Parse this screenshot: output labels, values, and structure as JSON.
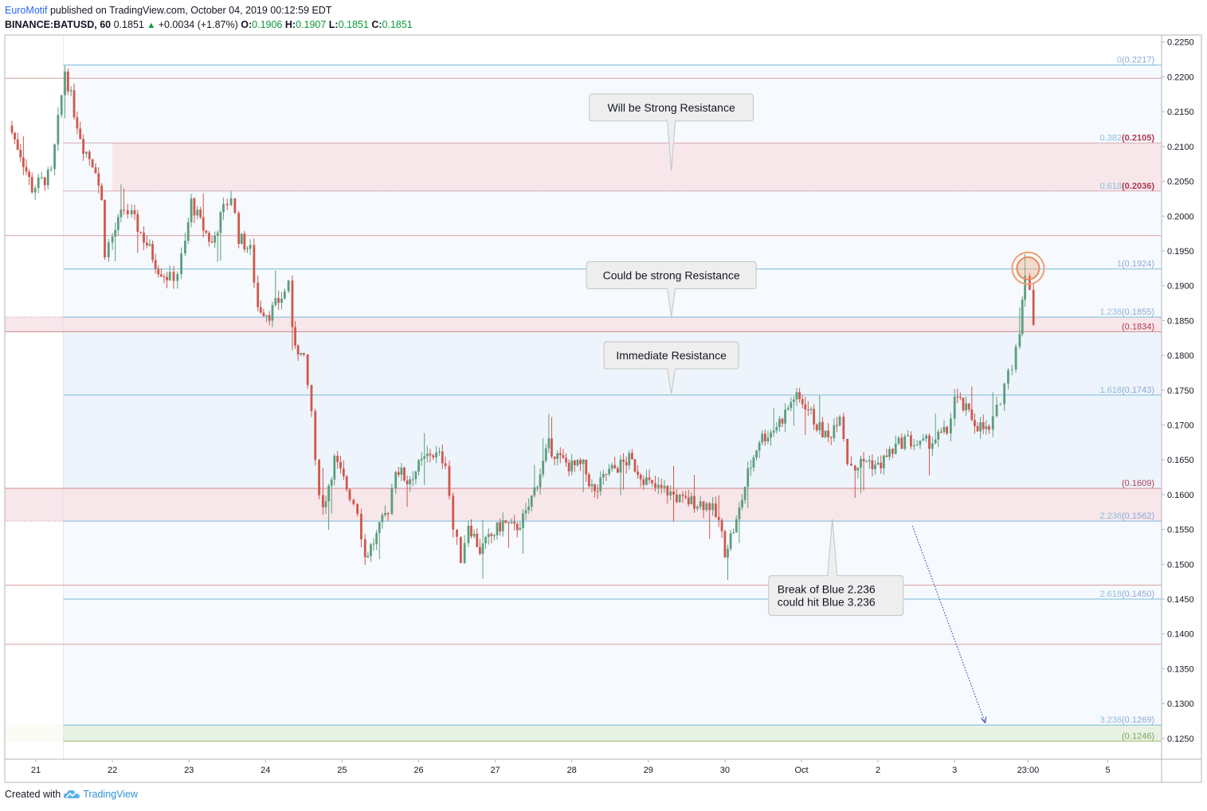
{
  "header": {
    "author": "EuroMotif",
    "published_text": " published on TradingView.com, October 04, 2019 00:12:59 EDT",
    "symbol": "BINANCE:BATUSD, 60",
    "last": "0.1851",
    "change": "+0.0034 (+1.87%)",
    "o_label": "O:",
    "o": "0.1906",
    "h_label": "H:",
    "h": "0.1907",
    "l_label": "L:",
    "l": "0.1851",
    "c_label": "C:",
    "c": "0.1851"
  },
  "footer": {
    "created_with": "Created with",
    "brand": "TradingView"
  },
  "colors": {
    "up": "#5c9e7e",
    "down": "#d0574d",
    "fib_blue": "#7bbad9",
    "fib_red": "#d08a8a",
    "pink_zone": "#f7e6ea",
    "blue_zone": "#eef4fb",
    "green_zone": "#e8f2e4"
  },
  "chart_data": {
    "type": "candlestick",
    "y_axis": {
      "min": 0.122,
      "max": 0.226,
      "ticks": [
        "0.2250",
        "0.2200",
        "0.2150",
        "0.2100",
        "0.2050",
        "0.2000",
        "0.1950",
        "0.1900",
        "0.1850",
        "0.1800",
        "0.1750",
        "0.1700",
        "0.1650",
        "0.1600",
        "0.1550",
        "0.1500",
        "0.1450",
        "0.1400",
        "0.1350",
        "0.1300",
        "0.1250"
      ]
    },
    "x_axis": {
      "ticks": [
        {
          "label": "21",
          "day": 0
        },
        {
          "label": "22",
          "day": 1
        },
        {
          "label": "23",
          "day": 2
        },
        {
          "label": "24",
          "day": 3
        },
        {
          "label": "25",
          "day": 4
        },
        {
          "label": "26",
          "day": 5
        },
        {
          "label": "27",
          "day": 6
        },
        {
          "label": "28",
          "day": 7
        },
        {
          "label": "29",
          "day": 8
        },
        {
          "label": "30",
          "day": 9
        },
        {
          "label": "Oct",
          "day": 10
        },
        {
          "label": "2",
          "day": 11
        },
        {
          "label": "3",
          "day": 12
        },
        {
          "label": "23:00",
          "day": 12.96
        },
        {
          "label": "5",
          "day": 14
        }
      ]
    },
    "fib_levels": [
      {
        "ratio": "0",
        "price": "(0.2217)",
        "value": 0.2217,
        "color": "blue"
      },
      {
        "ratio": "0.382",
        "price": "(0.2105)",
        "value": 0.2105,
        "color": "red"
      },
      {
        "ratio": "0.618",
        "price": "(0.2036)",
        "value": 0.2036,
        "color": "red"
      },
      {
        "ratio": "1",
        "price": "(0.1924)",
        "value": 0.1924,
        "color": "blue"
      },
      {
        "ratio": "1.236",
        "price": "(0.1855)",
        "value": 0.1855,
        "color": "blue"
      },
      {
        "ratio": "",
        "price": "(0.1834)",
        "value": 0.1834,
        "color": "red"
      },
      {
        "ratio": "1.618",
        "price": "(0.1743)",
        "value": 0.1743,
        "color": "blue"
      },
      {
        "ratio": "",
        "price": "(0.1609)",
        "value": 0.1609,
        "color": "red"
      },
      {
        "ratio": "2.236",
        "price": "(0.1562)",
        "value": 0.1562,
        "color": "blue"
      },
      {
        "ratio": "2.618",
        "price": "(0.1450)",
        "value": 0.145,
        "color": "blue"
      },
      {
        "ratio": "3.236",
        "price": "(0.1269)",
        "value": 0.1269,
        "color": "blue"
      },
      {
        "ratio": "",
        "price": "(0.1246)",
        "value": 0.1246,
        "color": "green"
      }
    ],
    "unlabeled_levels": [
      0.2198,
      0.1972,
      0.147,
      0.1385
    ],
    "annotations": [
      {
        "text": [
          "Will be Strong Resistance"
        ],
        "day": 8.3,
        "price": 0.2156,
        "pointer_price": 0.2065
      },
      {
        "text": [
          "Could be strong Resistance"
        ],
        "day": 8.3,
        "price": 0.1915,
        "pointer_price": 0.1855
      },
      {
        "text": [
          "Immediate Resistance"
        ],
        "day": 8.3,
        "price": 0.18,
        "pointer_price": 0.1745
      },
      {
        "text": [
          "Break of Blue 2.236",
          "could hit Blue 3.236"
        ],
        "day": 10.45,
        "price": 0.1455,
        "pointer_price": 0.1565
      }
    ],
    "projection_arrow": {
      "from_day": 11.45,
      "from_price": 0.1555,
      "to_day": 12.4,
      "to_price": 0.1272
    },
    "marker_circle": {
      "day": 12.96,
      "price": 0.1925
    },
    "candle_path": [
      [
        -0.35,
        0.213
      ],
      [
        -0.2,
        0.209
      ],
      [
        -0.05,
        0.204
      ],
      [
        0.2,
        0.206
      ],
      [
        0.38,
        0.221
      ],
      [
        0.5,
        0.215
      ],
      [
        0.62,
        0.21
      ],
      [
        0.78,
        0.207
      ],
      [
        0.86,
        0.202
      ],
      [
        0.9,
        0.195
      ],
      [
        1.0,
        0.197
      ],
      [
        1.15,
        0.201
      ],
      [
        1.25,
        0.2
      ],
      [
        1.45,
        0.196
      ],
      [
        1.6,
        0.1925
      ],
      [
        1.75,
        0.191
      ],
      [
        1.85,
        0.192
      ],
      [
        1.95,
        0.196
      ],
      [
        2.03,
        0.202
      ],
      [
        2.15,
        0.199
      ],
      [
        2.3,
        0.196
      ],
      [
        2.45,
        0.201
      ],
      [
        2.55,
        0.203
      ],
      [
        2.65,
        0.197
      ],
      [
        2.8,
        0.195
      ],
      [
        2.9,
        0.187
      ],
      [
        3.05,
        0.186
      ],
      [
        3.25,
        0.189
      ],
      [
        3.3,
        0.191
      ],
      [
        3.35,
        0.183
      ],
      [
        3.5,
        0.179
      ],
      [
        3.6,
        0.172
      ],
      [
        3.65,
        0.164
      ],
      [
        3.75,
        0.158
      ],
      [
        3.9,
        0.165
      ],
      [
        4.1,
        0.16
      ],
      [
        4.2,
        0.158
      ],
      [
        4.3,
        0.151
      ],
      [
        4.45,
        0.154
      ],
      [
        4.6,
        0.158
      ],
      [
        4.7,
        0.164
      ],
      [
        4.85,
        0.162
      ],
      [
        5.0,
        0.164
      ],
      [
        5.15,
        0.166
      ],
      [
        5.35,
        0.165
      ],
      [
        5.45,
        0.155
      ],
      [
        5.55,
        0.151
      ],
      [
        5.65,
        0.156
      ],
      [
        5.8,
        0.152
      ],
      [
        5.95,
        0.154
      ],
      [
        6.1,
        0.156
      ],
      [
        6.25,
        0.155
      ],
      [
        6.4,
        0.157
      ],
      [
        6.55,
        0.162
      ],
      [
        6.7,
        0.167
      ],
      [
        6.85,
        0.165
      ],
      [
        7.0,
        0.164
      ],
      [
        7.15,
        0.164
      ],
      [
        7.3,
        0.16
      ],
      [
        7.45,
        0.163
      ],
      [
        7.6,
        0.164
      ],
      [
        7.75,
        0.165
      ],
      [
        7.9,
        0.163
      ],
      [
        8.05,
        0.161
      ],
      [
        8.25,
        0.1605
      ],
      [
        8.45,
        0.159
      ],
      [
        8.6,
        0.159
      ],
      [
        8.8,
        0.1585
      ],
      [
        8.92,
        0.156
      ],
      [
        9.0,
        0.152
      ],
      [
        9.15,
        0.156
      ],
      [
        9.3,
        0.163
      ],
      [
        9.45,
        0.168
      ],
      [
        9.6,
        0.169
      ],
      [
        9.75,
        0.171
      ],
      [
        9.9,
        0.174
      ],
      [
        10.05,
        0.173
      ],
      [
        10.2,
        0.17
      ],
      [
        10.35,
        0.168
      ],
      [
        10.5,
        0.172
      ],
      [
        10.6,
        0.165
      ],
      [
        10.7,
        0.164
      ],
      [
        10.85,
        0.165
      ],
      [
        11.0,
        0.164
      ],
      [
        11.15,
        0.166
      ],
      [
        11.35,
        0.168
      ],
      [
        11.55,
        0.167
      ],
      [
        11.75,
        0.168
      ],
      [
        11.9,
        0.169
      ],
      [
        12.0,
        0.174
      ],
      [
        12.15,
        0.172
      ],
      [
        12.3,
        0.17
      ],
      [
        12.45,
        0.169
      ],
      [
        12.55,
        0.172
      ],
      [
        12.65,
        0.176
      ],
      [
        12.75,
        0.179
      ],
      [
        12.85,
        0.184
      ],
      [
        12.92,
        0.191
      ],
      [
        12.98,
        0.19
      ],
      [
        13.03,
        0.1851
      ]
    ]
  }
}
